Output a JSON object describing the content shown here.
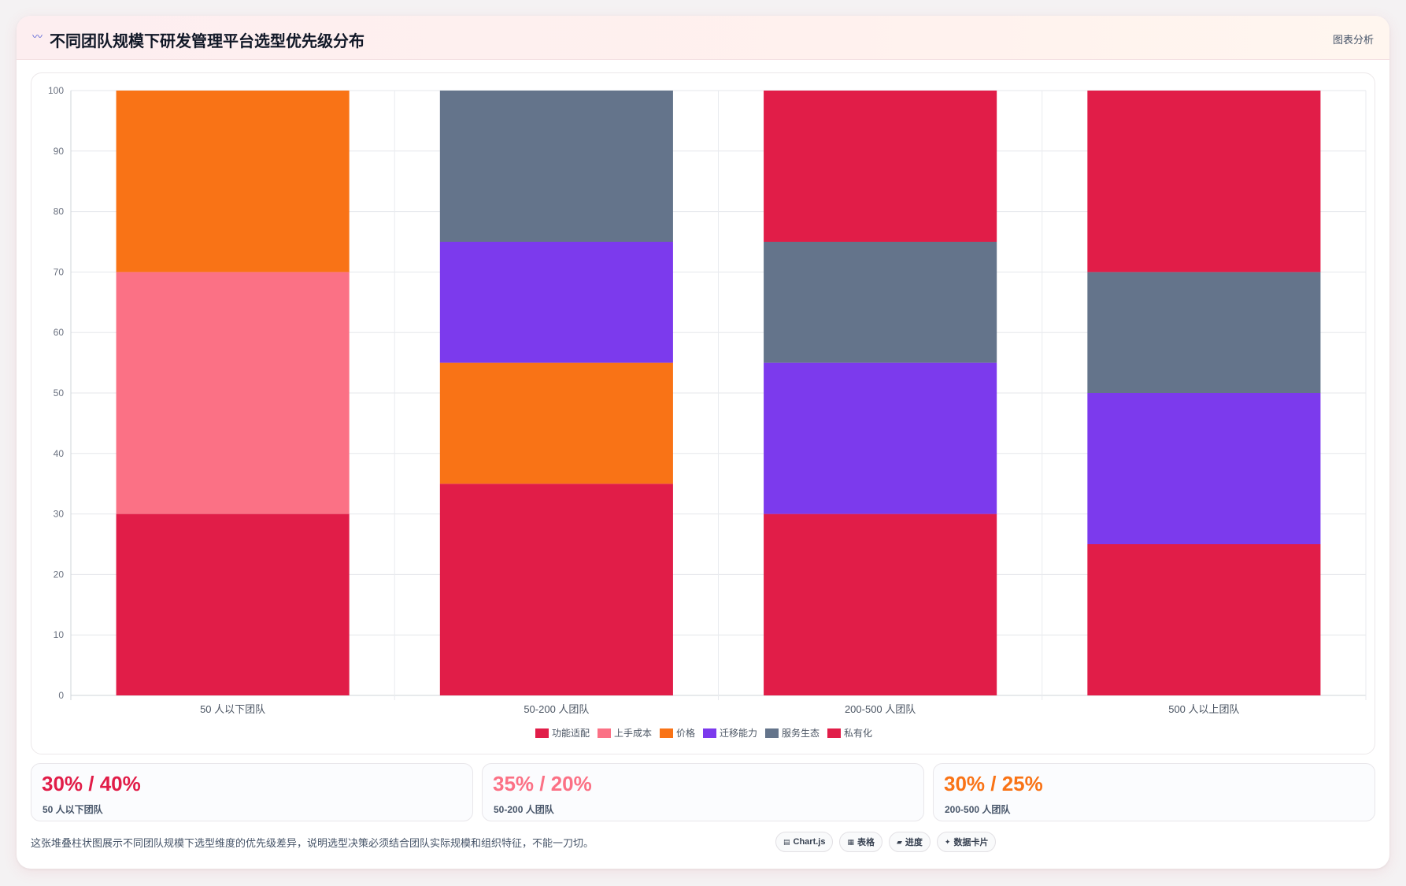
{
  "header": {
    "title": "不同团队规模下研发管理平台选型优先级分布",
    "title_icon": "chart-line-icon",
    "link": "图表分析"
  },
  "chart_data": {
    "type": "bar",
    "stacked": true,
    "categories": [
      "50 人以下团队",
      "50-200 人团队",
      "200-500 人团队",
      "500 人以上团队"
    ],
    "ylim": [
      0,
      100
    ],
    "yticks": [
      0,
      10,
      20,
      30,
      40,
      50,
      60,
      70,
      80,
      90,
      100
    ],
    "grid": true,
    "legend_position": "bottom",
    "series": [
      {
        "name": "功能适配",
        "color": "#e11d48",
        "values": [
          30,
          35,
          30,
          25
        ]
      },
      {
        "name": "上手成本",
        "color": "#fb7185",
        "values": [
          40,
          0,
          0,
          0
        ]
      },
      {
        "name": "价格",
        "color": "#f97316",
        "values": [
          30,
          20,
          0,
          0
        ]
      },
      {
        "name": "迁移能力",
        "color": "#7c3aed",
        "values": [
          0,
          20,
          25,
          25
        ]
      },
      {
        "name": "服务生态",
        "color": "#64748b",
        "values": [
          0,
          25,
          20,
          20
        ]
      },
      {
        "name": "私有化",
        "color": "#e11d48",
        "values": [
          0,
          0,
          25,
          30
        ]
      }
    ]
  },
  "stats": [
    {
      "value": "30% / 40%",
      "label": "50 人以下团队",
      "color": "#e11d48"
    },
    {
      "value": "35% / 20%",
      "label": "50-200 人团队",
      "color": "#fb7185"
    },
    {
      "value": "30% / 25%",
      "label": "200-500 人团队",
      "color": "#f97316"
    }
  ],
  "footer": {
    "note": "这张堆叠柱状图展示不同团队规模下选型维度的优先级差异，说明选型决策必须结合团队实际规模和组织特征，不能一刀切。",
    "chips": [
      {
        "icon": "chart-icon",
        "label": "Chart.js"
      },
      {
        "icon": "table-icon",
        "label": "表格"
      },
      {
        "icon": "progress-icon",
        "label": "进度"
      },
      {
        "icon": "card-icon",
        "label": "数据卡片"
      }
    ]
  }
}
